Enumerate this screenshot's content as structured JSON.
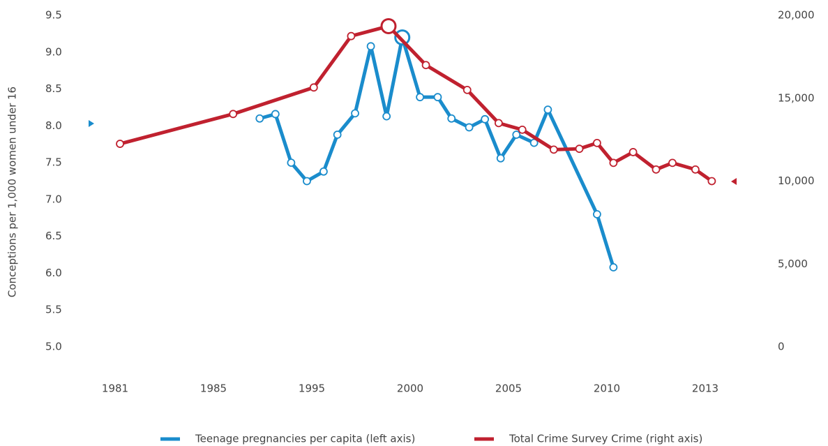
{
  "chart_data": {
    "type": "line",
    "y_label": "Conceptions per 1,000 women under 16",
    "xlim": [
      1981,
      2013
    ],
    "xticks": [
      1981,
      1985,
      1995,
      2000,
      2005,
      2010,
      2013
    ],
    "ylim": [
      5,
      9.5
    ],
    "yticks": [
      {
        "value": 5,
        "label": "5.0"
      },
      5.5,
      {
        "value": 6,
        "label": "6.0"
      },
      6.5,
      {
        "value": 7,
        "label": "7.0"
      },
      7.5,
      {
        "value": 8,
        "label": "8.0"
      },
      8.5,
      {
        "value": 9,
        "label": "9.0"
      },
      9.5
    ],
    "y2lim": [
      0,
      20000
    ],
    "y2ticks": [
      {
        "value": 0,
        "label": "0"
      },
      {
        "value": 5000,
        "label": "5,000"
      },
      {
        "value": 10000,
        "label": "10,000"
      },
      {
        "value": 15000,
        "label": "15,000"
      },
      {
        "value": 20000,
        "label": "20,000"
      }
    ],
    "grid": false,
    "legend": "bottom",
    "series": [
      {
        "name": "Teenage pregnancies per capita (left axis)",
        "color": "#1a8ccc",
        "x": [
          1989.7,
          1991.3,
          1992.9,
          1994.5,
          1995.6,
          1996.3,
          1997.2,
          1998.0,
          1998.8,
          1999.6,
          2000.5,
          2001.4,
          2002.1,
          2003.0,
          2003.8,
          2004.6,
          2005.4,
          2006.3,
          2007.0,
          2009.5,
          2010.2
        ],
        "values": [
          8.1,
          8.16,
          7.5,
          7.25,
          7.38,
          7.88,
          8.17,
          9.08,
          8.13,
          9.2,
          8.39,
          8.39,
          8.1,
          7.98,
          8.09,
          7.56,
          7.88,
          7.77,
          8.22,
          6.8,
          6.08
        ]
      },
      {
        "name": "Total Crime Survey Crime (right axis)",
        "color": "#c0212f",
        "axis": "y2",
        "x": [
          1981.2,
          1987.0,
          1995.1,
          1997.0,
          1998.9,
          2000.8,
          2002.9,
          2004.5,
          2005.7,
          2007.3,
          2008.6,
          2009.5,
          2010.2,
          2010.8,
          2011.5,
          2012.0,
          2012.7,
          2013.2
        ],
        "values": [
          12250,
          14050,
          15650,
          18750,
          19350,
          17000,
          15500,
          13500,
          13100,
          11900,
          11950,
          12300,
          11100,
          11750,
          10700,
          11100,
          10700,
          10000
        ]
      }
    ]
  }
}
